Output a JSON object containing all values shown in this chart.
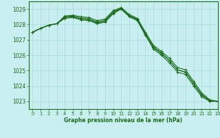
{
  "background_color": "#c8eef0",
  "grid_color": "#b0dde0",
  "line_color": "#1a6b1a",
  "title": "Graphe pression niveau de la mer (hPa)",
  "xlim": [
    -0.5,
    23
  ],
  "ylim": [
    1022.5,
    1029.5
  ],
  "yticks": [
    1023,
    1024,
    1025,
    1026,
    1027,
    1028,
    1029
  ],
  "xticks": [
    0,
    1,
    2,
    3,
    4,
    5,
    6,
    7,
    8,
    9,
    10,
    11,
    12,
    13,
    14,
    15,
    16,
    17,
    18,
    19,
    20,
    21,
    22,
    23
  ],
  "series": [
    [
      1027.5,
      1027.75,
      1027.95,
      1028.05,
      1028.45,
      1028.5,
      1028.35,
      1028.3,
      1028.1,
      1028.2,
      1028.75,
      1029.05,
      1028.55,
      1028.3,
      1027.4,
      1026.55,
      1026.15,
      1025.65,
      1025.05,
      1024.9,
      1024.15,
      1023.4,
      1023.05,
      1023.0
    ],
    [
      1027.5,
      1027.75,
      1027.95,
      1028.05,
      1028.4,
      1028.45,
      1028.3,
      1028.25,
      1028.05,
      1028.15,
      1028.7,
      1029.0,
      1028.5,
      1028.25,
      1027.3,
      1026.4,
      1026.0,
      1025.5,
      1024.9,
      1024.75,
      1024.0,
      1023.3,
      1023.0,
      1023.0
    ],
    [
      1027.5,
      1027.75,
      1027.95,
      1028.05,
      1028.55,
      1028.6,
      1028.5,
      1028.45,
      1028.25,
      1028.35,
      1028.9,
      1029.1,
      1028.65,
      1028.4,
      1027.5,
      1026.65,
      1026.25,
      1025.8,
      1025.2,
      1025.05,
      1024.3,
      1023.55,
      1023.1,
      1023.0
    ],
    [
      1027.5,
      1027.75,
      1027.95,
      1028.05,
      1028.5,
      1028.55,
      1028.42,
      1028.38,
      1028.15,
      1028.28,
      1028.82,
      1029.05,
      1028.58,
      1028.35,
      1027.42,
      1026.5,
      1026.1,
      1025.65,
      1025.05,
      1024.9,
      1024.15,
      1023.45,
      1023.05,
      1023.0
    ]
  ]
}
